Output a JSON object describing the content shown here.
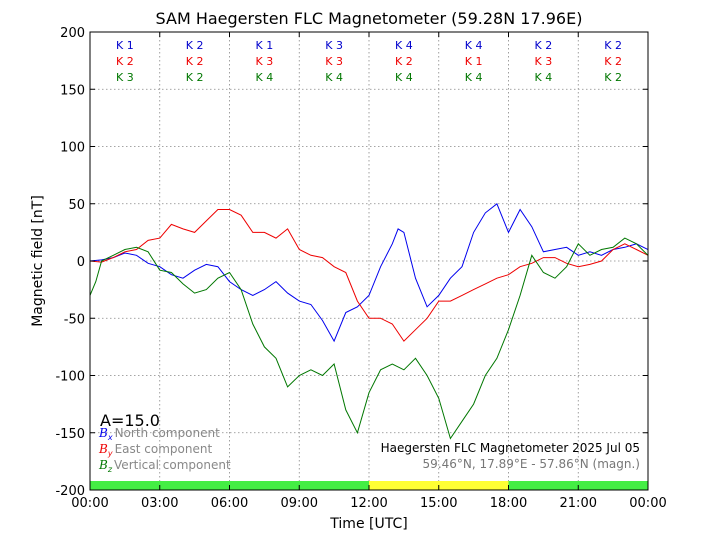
{
  "chart_data": {
    "type": "line",
    "title": "SAM Haegersten FLC Magnetometer (59.28N 17.96E)",
    "xlabel": "Time [UTC]",
    "ylabel": "Magnetic field [nT]",
    "xlim": [
      0,
      24
    ],
    "ylim": [
      -200,
      200
    ],
    "xticks": [
      0,
      3,
      6,
      9,
      12,
      15,
      18,
      21,
      24
    ],
    "xtick_labels": [
      "00:00",
      "03:00",
      "06:00",
      "09:00",
      "12:00",
      "15:00",
      "18:00",
      "21:00",
      "00:00"
    ],
    "yticks": [
      -200,
      -150,
      -100,
      -50,
      0,
      50,
      100,
      150,
      200
    ],
    "grid": true,
    "k_indices": {
      "colors": [
        "#0000cc",
        "#ee0000",
        "#007700"
      ],
      "rows": [
        [
          "K 1",
          "K 2",
          "K 1",
          "K 3",
          "K 4",
          "K 4",
          "K 2",
          "K 2"
        ],
        [
          "K 2",
          "K 2",
          "K 3",
          "K 3",
          "K 2",
          "K 1",
          "K 3",
          "K 2"
        ],
        [
          "K 3",
          "K 2",
          "K 4",
          "K 4",
          "K 4",
          "K 4",
          "K 4",
          "K 2"
        ]
      ]
    },
    "a_index": "A=15.0",
    "legend": {
      "placement": "bottom-left",
      "entries": [
        {
          "symbol": "B",
          "sub": "x",
          "label": "North component",
          "color": "#0000ee"
        },
        {
          "symbol": "B",
          "sub": "y",
          "label": "East component",
          "color": "#ee0000"
        },
        {
          "symbol": "B",
          "sub": "z",
          "label": "Vertical component",
          "color": "#007700"
        }
      ]
    },
    "info": {
      "line1": "Haegersten FLC Magnetometer 2025 Jul 05",
      "line2": "59.46°N, 17.89°E - 57.86°N (magn.)"
    },
    "daylight_bar": [
      {
        "start": 0,
        "end": 12,
        "color": "#44ee44"
      },
      {
        "start": 12,
        "end": 18,
        "color": "#ffff33"
      },
      {
        "start": 18,
        "end": 24,
        "color": "#44ee44"
      }
    ],
    "series": [
      {
        "key": "Bx",
        "color": "#0000ee",
        "x": [
          0,
          0.5,
          1,
          1.5,
          2,
          2.5,
          3,
          3.5,
          4,
          4.5,
          5,
          5.5,
          6,
          6.5,
          7,
          7.5,
          8,
          8.5,
          9,
          9.5,
          10,
          10.5,
          11,
          11.5,
          12,
          12.5,
          13,
          13.25,
          13.5,
          14,
          14.5,
          15,
          15.5,
          16,
          16.5,
          17,
          17.5,
          18,
          18.5,
          19,
          19.5,
          20,
          20.5,
          21,
          21.5,
          22,
          22.5,
          23,
          23.5,
          24
        ],
        "values": [
          0,
          1,
          3,
          7,
          5,
          -2,
          -5,
          -12,
          -15,
          -8,
          -3,
          -5,
          -18,
          -25,
          -30,
          -25,
          -18,
          -28,
          -35,
          -38,
          -52,
          -70,
          -45,
          -40,
          -30,
          -5,
          15,
          28,
          25,
          -15,
          -40,
          -30,
          -15,
          -5,
          25,
          42,
          50,
          25,
          45,
          30,
          8,
          10,
          12,
          5,
          8,
          5,
          10,
          12,
          15,
          10
        ]
      },
      {
        "key": "By",
        "color": "#ee0000",
        "x": [
          0,
          0.5,
          1,
          1.5,
          2,
          2.5,
          3,
          3.5,
          4,
          4.5,
          5,
          5.5,
          6,
          6.5,
          7,
          7.5,
          8,
          8.5,
          9,
          9.5,
          10,
          10.5,
          11,
          11.5,
          12,
          12.5,
          13,
          13.5,
          14,
          14.5,
          15,
          15.5,
          16,
          16.5,
          17,
          17.5,
          18,
          18.5,
          19,
          19.5,
          20,
          20.5,
          21,
          21.5,
          22,
          22.5,
          23,
          23.5,
          24
        ],
        "values": [
          0,
          -1,
          3,
          8,
          10,
          18,
          20,
          32,
          28,
          25,
          35,
          45,
          45,
          40,
          25,
          25,
          20,
          28,
          10,
          5,
          3,
          -5,
          -10,
          -35,
          -50,
          -50,
          -55,
          -70,
          -60,
          -50,
          -35,
          -35,
          -30,
          -25,
          -20,
          -15,
          -12,
          -5,
          -2,
          3,
          3,
          -2,
          -5,
          -3,
          0,
          10,
          15,
          10,
          5
        ]
      },
      {
        "key": "Bz",
        "color": "#007700",
        "x": [
          0,
          0.25,
          0.5,
          1,
          1.5,
          2,
          2.5,
          3,
          3.5,
          4,
          4.5,
          5,
          5.5,
          6,
          6.5,
          7,
          7.5,
          8,
          8.5,
          9,
          9.5,
          10,
          10.5,
          11,
          11.5,
          12,
          12.5,
          13,
          13.5,
          14,
          14.5,
          15,
          15.5,
          16,
          16.5,
          17,
          17.5,
          18,
          18.5,
          19,
          19.5,
          20,
          20.5,
          21,
          21.5,
          22,
          22.5,
          23,
          23.5,
          24
        ],
        "values": [
          -30,
          -18,
          0,
          5,
          10,
          12,
          8,
          -8,
          -10,
          -20,
          -28,
          -25,
          -15,
          -10,
          -25,
          -55,
          -75,
          -85,
          -110,
          -100,
          -95,
          -100,
          -90,
          -130,
          -150,
          -115,
          -95,
          -90,
          -95,
          -85,
          -100,
          -120,
          -155,
          -140,
          -125,
          -100,
          -85,
          -60,
          -30,
          5,
          -10,
          -15,
          -5,
          15,
          5,
          10,
          12,
          20,
          15,
          5
        ]
      }
    ]
  }
}
